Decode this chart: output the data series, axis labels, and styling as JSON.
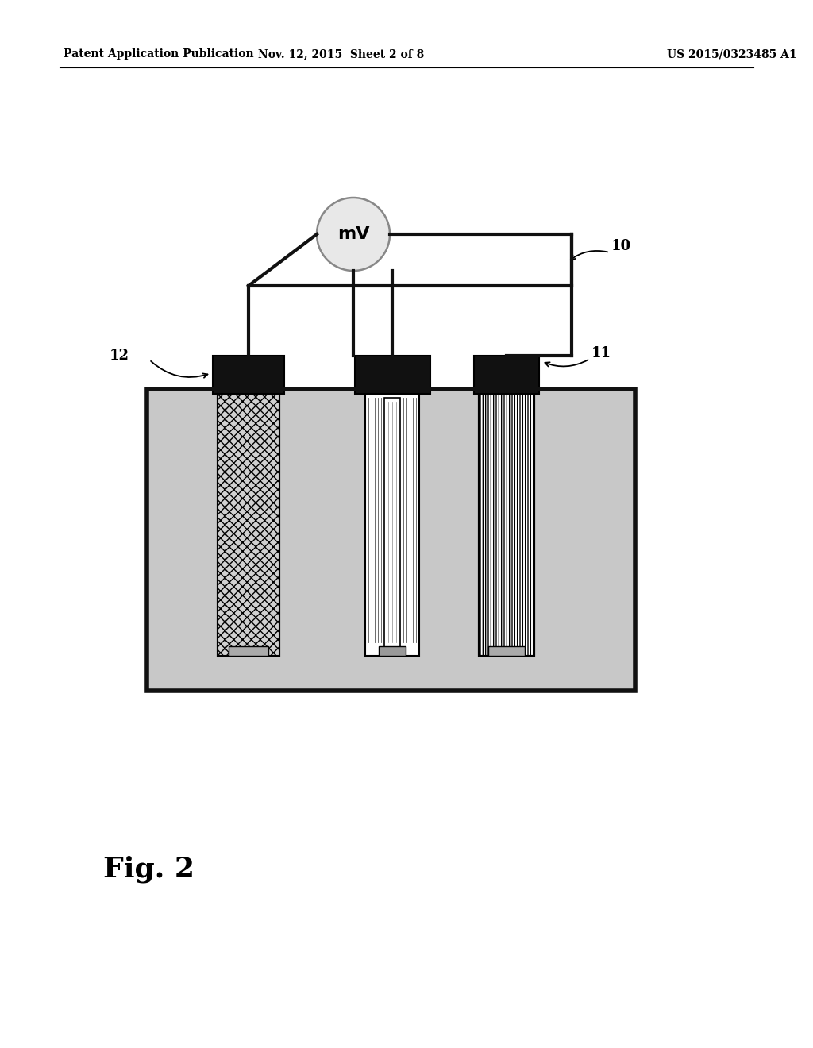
{
  "bg_color": "#ffffff",
  "header_left": "Patent Application Publication",
  "header_mid": "Nov. 12, 2015  Sheet 2 of 8",
  "header_right": "US 2015/0323485 A1",
  "fig_label": "Fig. 2",
  "label_10": "10",
  "label_11": "11",
  "label_12": "12",
  "mv_label": "mV",
  "tank_fill": "#c8c8c8",
  "tank_edge": "#111111",
  "cap_color": "#111111",
  "wire_color": "#111111",
  "mv_fill": "#e8e8e8",
  "mv_edge": "#888888",
  "foot_color": "#aaaaaa"
}
